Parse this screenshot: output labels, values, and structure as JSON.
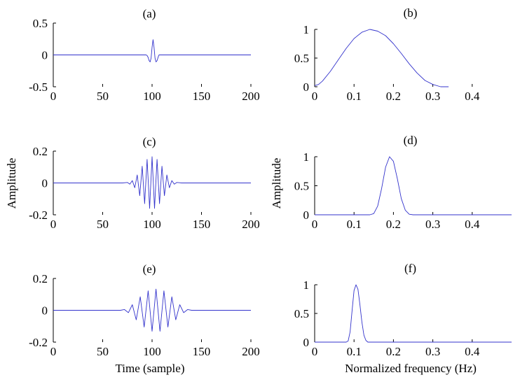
{
  "figure": {
    "left_ylabel": "Amplitude",
    "left_xlabel": "Time (sample)",
    "right_ylabel": "Amplitude",
    "right_xlabel": "Normalized frequency (Hz)",
    "line_color": "#3333cc"
  },
  "chart_data": [
    {
      "type": "line",
      "title": "(a)",
      "xlim": [
        0,
        200
      ],
      "ylim": [
        -0.5,
        0.5
      ],
      "xticks": [
        0,
        50,
        100,
        150,
        200
      ],
      "xtick_labels": [
        "0",
        "50",
        "100",
        "150",
        "200"
      ],
      "yticks": [
        -0.5,
        0,
        0.5
      ],
      "ytick_labels": [
        "-0.5",
        "0",
        "0.5"
      ],
      "grid": false,
      "series": [
        {
          "x": [
            0,
            94,
            95,
            96,
            97,
            98,
            99,
            100,
            101,
            102,
            103,
            104,
            105,
            106,
            107,
            200
          ],
          "y": [
            0,
            0,
            -0.01,
            -0.04,
            -0.09,
            -0.11,
            -0.05,
            0.12,
            0.24,
            0.12,
            -0.05,
            -0.11,
            -0.09,
            -0.04,
            0,
            0
          ]
        }
      ]
    },
    {
      "type": "line",
      "title": "(b)",
      "xlim": [
        0,
        0.5
      ],
      "ylim": [
        0,
        1
      ],
      "xticks": [
        0,
        0.1,
        0.2,
        0.3,
        0.4
      ],
      "xtick_labels": [
        "0",
        "0.1",
        "0.2",
        "0.3",
        "0.4"
      ],
      "yticks": [
        0,
        0.5,
        1
      ],
      "ytick_labels": [
        "0",
        "0.5",
        "1"
      ],
      "grid": false,
      "series": [
        {
          "x": [
            0,
            0.01,
            0.02,
            0.04,
            0.06,
            0.08,
            0.1,
            0.12,
            0.14,
            0.16,
            0.18,
            0.2,
            0.22,
            0.24,
            0.26,
            0.28,
            0.3,
            0.32,
            0.34
          ],
          "y": [
            0.02,
            0.04,
            0.1,
            0.27,
            0.47,
            0.67,
            0.84,
            0.95,
            1.0,
            0.97,
            0.89,
            0.75,
            0.58,
            0.4,
            0.24,
            0.11,
            0.04,
            0.0,
            0.0
          ]
        }
      ]
    },
    {
      "type": "line",
      "title": "(c)",
      "xlim": [
        0,
        200
      ],
      "ylim": [
        -0.2,
        0.2
      ],
      "xticks": [
        0,
        50,
        100,
        150,
        200
      ],
      "xtick_labels": [
        "0",
        "50",
        "100",
        "150",
        "200"
      ],
      "yticks": [
        -0.2,
        0,
        0.2
      ],
      "ytick_labels": [
        "-0.2",
        "0",
        "0.2"
      ],
      "grid": false,
      "series": [
        {
          "x": [
            0,
            70,
            75,
            77.5,
            80,
            82.5,
            85,
            87.5,
            90,
            92.5,
            95,
            97.5,
            100,
            102.5,
            105,
            107.5,
            110,
            112.5,
            115,
            117.5,
            120,
            122.5,
            125,
            130,
            200
          ],
          "y": [
            0,
            0,
            0.003,
            -0.008,
            0.015,
            -0.03,
            0.05,
            -0.08,
            0.105,
            -0.13,
            0.148,
            -0.16,
            0.165,
            -0.16,
            0.148,
            -0.13,
            0.105,
            -0.08,
            0.05,
            -0.03,
            0.015,
            -0.008,
            0.003,
            0,
            0
          ]
        }
      ]
    },
    {
      "type": "line",
      "title": "(d)",
      "xlim": [
        0,
        0.5
      ],
      "ylim": [
        0,
        1
      ],
      "xticks": [
        0,
        0.1,
        0.2,
        0.3,
        0.4
      ],
      "xtick_labels": [
        "0",
        "0.1",
        "0.2",
        "0.3",
        "0.4"
      ],
      "yticks": [
        0,
        0.5,
        1
      ],
      "ytick_labels": [
        "0",
        "0.5",
        "1"
      ],
      "grid": false,
      "series": [
        {
          "x": [
            0,
            0.14,
            0.15,
            0.16,
            0.17,
            0.18,
            0.19,
            0.2,
            0.21,
            0.22,
            0.23,
            0.24,
            0.25,
            0.5
          ],
          "y": [
            0,
            0,
            0.02,
            0.15,
            0.45,
            0.82,
            1.0,
            0.92,
            0.62,
            0.28,
            0.08,
            0.01,
            0,
            0
          ]
        }
      ]
    },
    {
      "type": "line",
      "title": "(e)",
      "xlim": [
        0,
        200
      ],
      "ylim": [
        -0.2,
        0.2
      ],
      "xticks": [
        0,
        50,
        100,
        150,
        200
      ],
      "xtick_labels": [
        "0",
        "50",
        "100",
        "150",
        "200"
      ],
      "yticks": [
        -0.2,
        0,
        0.2
      ],
      "ytick_labels": [
        "-0.2",
        "0",
        "0.2"
      ],
      "grid": false,
      "series": [
        {
          "x": [
            0,
            68,
            72,
            76,
            80,
            84,
            88,
            92,
            96,
            100,
            104,
            108,
            112,
            116,
            120,
            124,
            128,
            132,
            136,
            140,
            144,
            200
          ],
          "y": [
            0,
            0,
            0.005,
            -0.015,
            0.035,
            -0.06,
            0.085,
            -0.105,
            0.122,
            -0.132,
            0.133,
            -0.132,
            0.122,
            -0.105,
            0.085,
            -0.06,
            0.035,
            -0.015,
            0.005,
            0,
            0,
            0
          ]
        }
      ]
    },
    {
      "type": "line",
      "title": "(f)",
      "xlim": [
        0,
        0.5
      ],
      "ylim": [
        0,
        1
      ],
      "xticks": [
        0,
        0.1,
        0.2,
        0.3,
        0.4
      ],
      "xtick_labels": [
        "0",
        "0.1",
        "0.2",
        "0.3",
        "0.4"
      ],
      "yticks": [
        0,
        0.5,
        1
      ],
      "ytick_labels": [
        "0",
        "0.5",
        "1"
      ],
      "grid": false,
      "series": [
        {
          "x": [
            0,
            0.08,
            0.085,
            0.09,
            0.095,
            0.1,
            0.105,
            0.11,
            0.115,
            0.12,
            0.125,
            0.13,
            0.135,
            0.14,
            0.5
          ],
          "y": [
            0,
            0,
            0.02,
            0.18,
            0.55,
            0.9,
            1.0,
            0.92,
            0.65,
            0.35,
            0.12,
            0.03,
            0,
            0,
            0
          ]
        }
      ]
    }
  ]
}
